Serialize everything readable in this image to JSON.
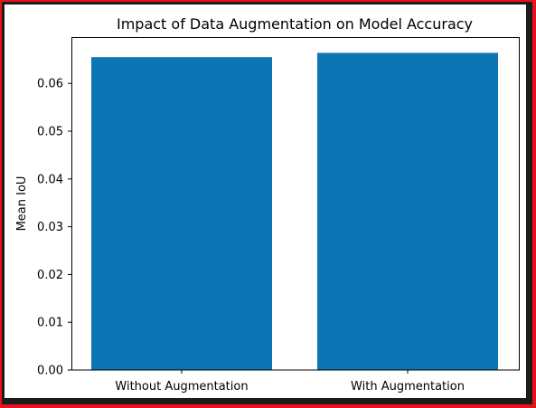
{
  "chart_data": {
    "type": "bar",
    "title": "Impact of Data Augmentation on Model Accuracy",
    "xlabel": "",
    "ylabel": "Mean IoU",
    "categories": [
      "Without Augmentation",
      "With Augmentation"
    ],
    "values": [
      0.0655,
      0.0664
    ],
    "ylim": [
      0,
      0.0697
    ],
    "yticks": [
      "0.00",
      "0.01",
      "0.02",
      "0.03",
      "0.04",
      "0.05",
      "0.06"
    ],
    "ytick_values": [
      0,
      0.01,
      0.02,
      0.03,
      0.04,
      0.05,
      0.06
    ],
    "bar_color": "#0e75b5",
    "grid": false,
    "legend": "none"
  }
}
